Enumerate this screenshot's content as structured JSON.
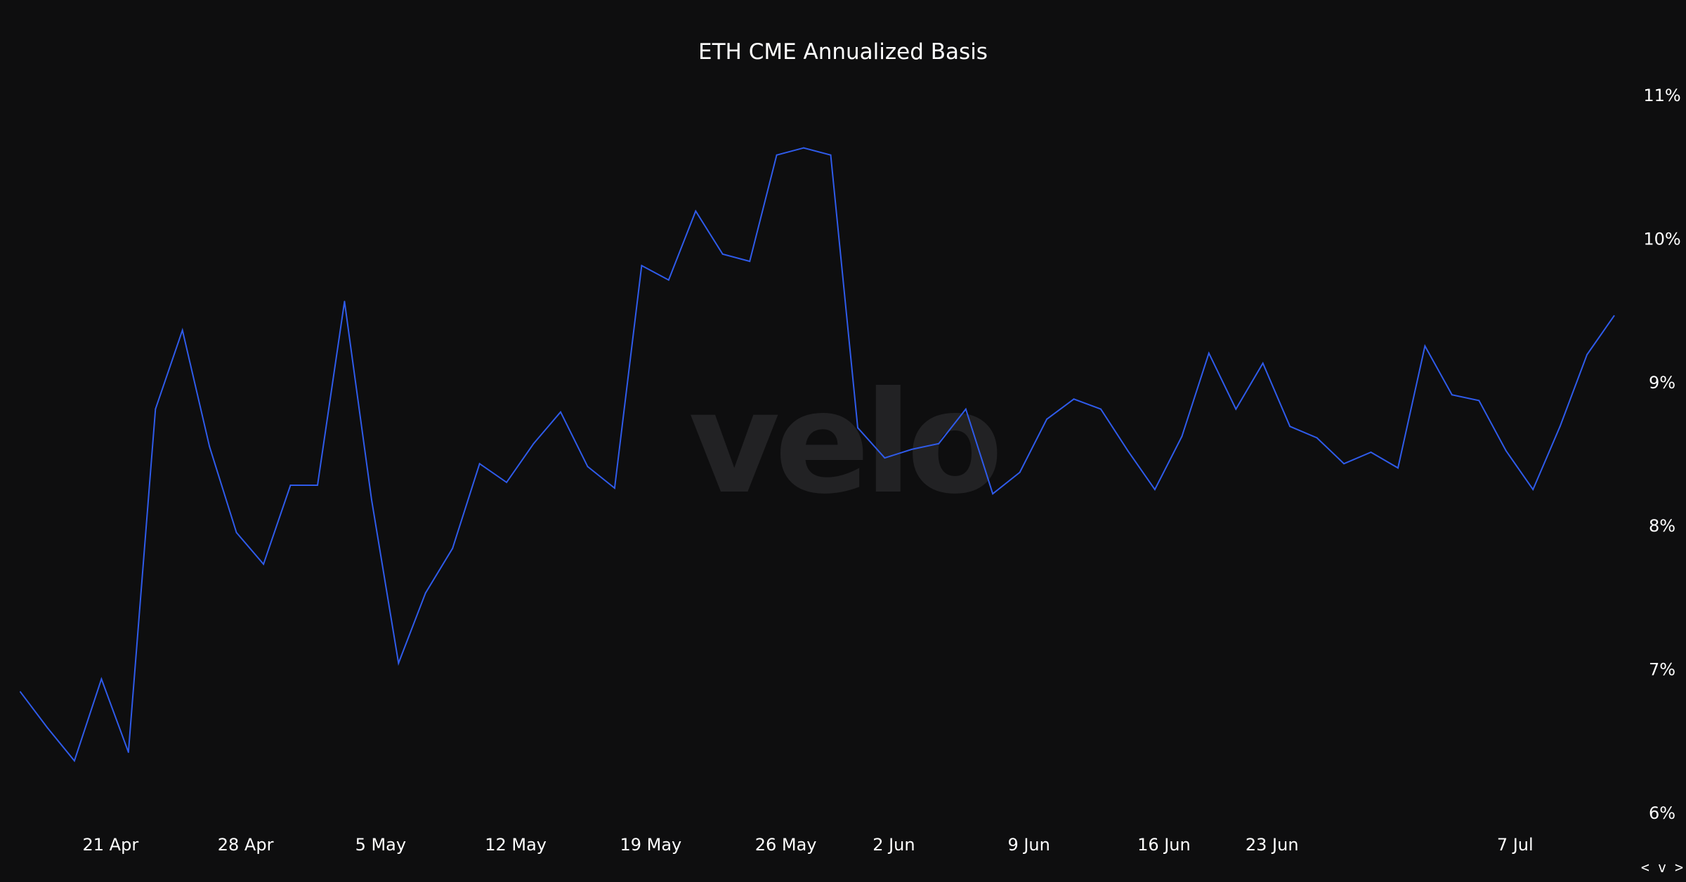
{
  "watermark": "velo",
  "nav_arrows": "< v >",
  "chart_data": {
    "type": "line",
    "title": "ETH CME Annualized Basis",
    "xlabel": "",
    "ylabel": "",
    "ylim": [
      6,
      11
    ],
    "y_axis_side": "right",
    "y_ticks": [
      {
        "value": 11,
        "label": "11%"
      },
      {
        "value": 10,
        "label": "10%"
      },
      {
        "value": 9,
        "label": "9%"
      },
      {
        "value": 8,
        "label": "8%"
      },
      {
        "value": 7,
        "label": "7%"
      },
      {
        "value": 6,
        "label": "6%"
      }
    ],
    "x_ticks": [
      {
        "index": 3,
        "label": "21 Apr"
      },
      {
        "index": 8,
        "label": "28 Apr"
      },
      {
        "index": 13,
        "label": "5 May"
      },
      {
        "index": 18,
        "label": "12 May"
      },
      {
        "index": 23,
        "label": "19 May"
      },
      {
        "index": 28,
        "label": "26 May"
      },
      {
        "index": 32,
        "label": "2 Jun"
      },
      {
        "index": 37,
        "label": "9 Jun"
      },
      {
        "index": 42,
        "label": "16 Jun"
      },
      {
        "index": 46,
        "label": "23 Jun"
      },
      {
        "index": 55,
        "label": "7 Jul"
      }
    ],
    "grid": false,
    "legend": "none",
    "series": [
      {
        "color": "#2f5bea",
        "values": [
          6.84,
          6.59,
          6.36,
          6.93,
          6.42,
          8.81,
          9.36,
          8.55,
          7.95,
          7.73,
          8.28,
          8.28,
          9.56,
          8.18,
          7.04,
          7.53,
          7.84,
          8.43,
          8.3,
          8.57,
          8.79,
          8.41,
          8.26,
          9.81,
          9.71,
          10.19,
          9.89,
          9.84,
          10.58,
          10.63,
          10.58,
          8.68,
          8.47,
          8.53,
          8.57,
          8.81,
          8.22,
          8.37,
          8.74,
          8.88,
          8.81,
          8.52,
          8.25,
          8.62,
          9.2,
          8.81,
          9.13,
          8.69,
          8.61,
          8.43,
          8.51,
          8.4,
          9.25,
          8.91,
          8.87,
          8.52,
          8.25,
          8.69,
          9.19,
          9.46
        ]
      }
    ]
  }
}
